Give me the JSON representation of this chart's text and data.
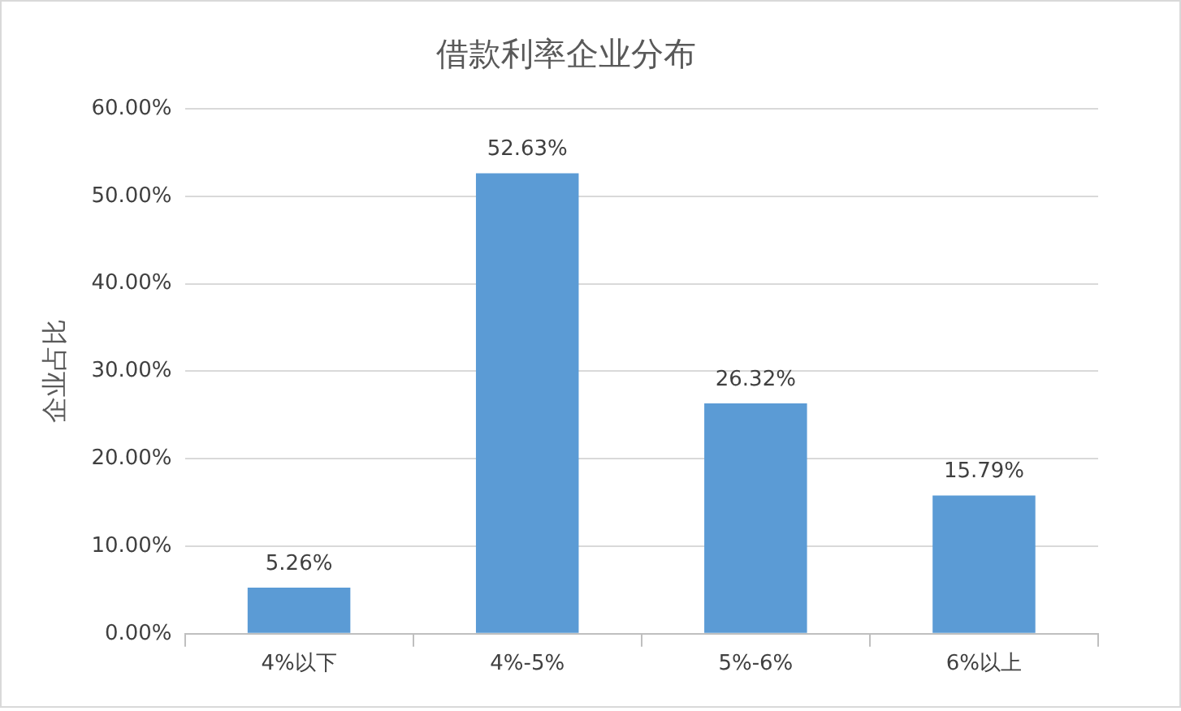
{
  "chart_data": {
    "type": "bar",
    "title": "借款利率企业分布",
    "ylabel": "企业占比",
    "categories": [
      "4%以下",
      "4%-5%",
      "5%-6%",
      "6%以上"
    ],
    "values": [
      5.26,
      52.63,
      26.32,
      15.79
    ],
    "value_labels": [
      "5.26%",
      "52.63%",
      "26.32%",
      "15.79%"
    ],
    "color": "#5b9bd5",
    "ylim": [
      0,
      60
    ],
    "yticks": [
      {
        "value": 0,
        "label": "0.00%"
      },
      {
        "value": 10,
        "label": "10.00%"
      },
      {
        "value": 20,
        "label": "20.00%"
      },
      {
        "value": 30,
        "label": "30.00%"
      },
      {
        "value": 40,
        "label": "40.00%"
      },
      {
        "value": 50,
        "label": "50.00%"
      },
      {
        "value": 60,
        "label": "60.00%"
      }
    ],
    "grid": "y",
    "legend": false
  }
}
